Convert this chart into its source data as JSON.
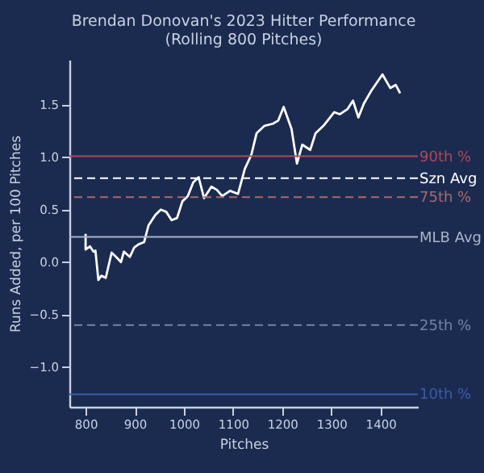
{
  "chart_data": {
    "type": "line",
    "title": "Brendan Donovan's 2023 Hitter Performance",
    "subtitle": "(Rolling 800 Pitches)",
    "xlabel": "Pitches",
    "ylabel": "Runs Added, per 100 Pitches",
    "x": [
      800,
      800,
      809,
      816,
      820,
      826,
      832,
      841,
      853,
      864,
      872,
      878,
      890,
      899,
      908,
      919,
      928,
      942,
      953,
      964,
      975,
      986,
      997,
      1008,
      1019,
      1030,
      1041,
      1056,
      1067,
      1078,
      1094,
      1110,
      1124,
      1137,
      1148,
      1164,
      1181,
      1192,
      1203,
      1219,
      1230,
      1241,
      1257,
      1268,
      1284,
      1306,
      1317,
      1333,
      1344,
      1355,
      1366,
      1382,
      1404,
      1420,
      1431,
      1440
    ],
    "series": [
      {
        "color": "#ffffff",
        "values": [
          0.27,
          0.12,
          0.15,
          0.1,
          0.11,
          -0.17,
          -0.13,
          -0.15,
          0.09,
          0.04,
          0.0,
          0.1,
          0.05,
          0.14,
          0.17,
          0.19,
          0.35,
          0.45,
          0.5,
          0.48,
          0.4,
          0.42,
          0.58,
          0.63,
          0.76,
          0.81,
          0.61,
          0.72,
          0.69,
          0.63,
          0.68,
          0.65,
          0.89,
          1.02,
          1.23,
          1.3,
          1.32,
          1.35,
          1.48,
          1.27,
          0.94,
          1.12,
          1.07,
          1.23,
          1.3,
          1.43,
          1.41,
          1.46,
          1.54,
          1.38,
          1.51,
          1.64,
          1.79,
          1.66,
          1.69,
          1.61
        ]
      }
    ],
    "xlim": [
      767,
      1476
    ],
    "ylim": [
      -1.38,
      1.93
    ],
    "xticks": [
      800,
      900,
      1000,
      1100,
      1200,
      1300,
      1400
    ],
    "yticks": [
      {
        "value": -1,
        "label": "−1.0"
      },
      {
        "value": -0.5,
        "label": "−0.5"
      },
      {
        "value": 0,
        "label": "0.0"
      },
      {
        "value": 0.5,
        "label": "0.5"
      },
      {
        "value": 1,
        "label": "1.0"
      },
      {
        "value": 1.5,
        "label": "1.5"
      }
    ],
    "grid": false,
    "line_style": "solid",
    "ref_lines": [
      {
        "axis": "y",
        "value": 1.01,
        "label": "90th %",
        "color": "#b0485a",
        "line_style": "solid"
      },
      {
        "axis": "y",
        "value": 0.8,
        "label": "Szn Avg",
        "color": "#ffffff",
        "line_style": "dashed"
      },
      {
        "axis": "y",
        "value": 0.62,
        "label": "75th %",
        "color": "#a86a6e",
        "line_style": "dashed"
      },
      {
        "axis": "y",
        "value": 0.24,
        "label": "MLB Avg",
        "color": "#aab4c8",
        "line_style": "solid"
      },
      {
        "axis": "y",
        "value": -0.6,
        "label": "25th %",
        "color": "#7482a8",
        "line_style": "dashed"
      },
      {
        "axis": "y",
        "value": -1.26,
        "label": "10th %",
        "color": "#3a5ca8",
        "line_style": "solid"
      }
    ]
  }
}
